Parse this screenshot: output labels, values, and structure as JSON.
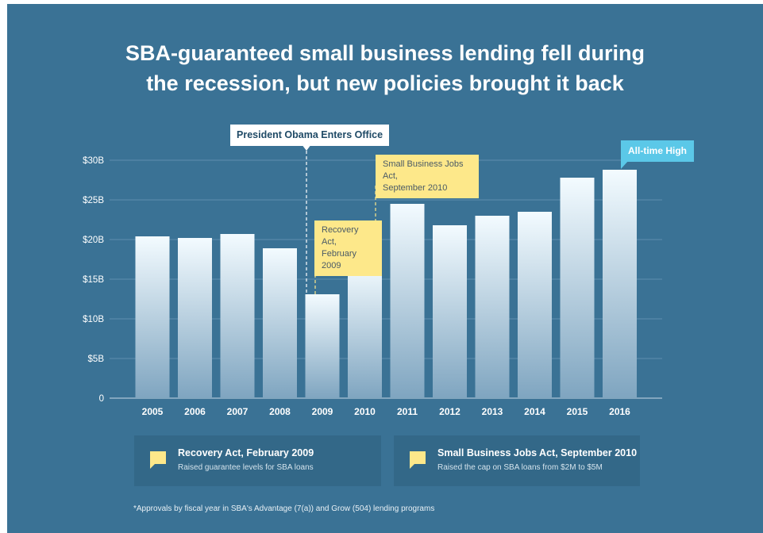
{
  "title_line1": "SBA-guaranteed small business lending fell during",
  "title_line2": "the recession, but new policies brought it back",
  "chart_data": {
    "type": "bar",
    "categories": [
      "2005",
      "2006",
      "2007",
      "2008",
      "2009",
      "2010",
      "2011",
      "2012",
      "2013",
      "2014",
      "2015",
      "2016"
    ],
    "values": [
      20.4,
      20.2,
      20.7,
      18.9,
      13.1,
      16.8,
      24.5,
      21.8,
      23.0,
      23.5,
      27.8,
      28.8
    ],
    "y_ticks": [
      {
        "value": 0,
        "label": "0"
      },
      {
        "value": 5,
        "label": "$5B"
      },
      {
        "value": 10,
        "label": "$10B"
      },
      {
        "value": 15,
        "label": "$15B"
      },
      {
        "value": 20,
        "label": "$20B"
      },
      {
        "value": 25,
        "label": "$25B"
      },
      {
        "value": 30,
        "label": "$30B"
      }
    ],
    "ylim": [
      0,
      30
    ],
    "grid": true,
    "annotations": [
      {
        "id": "obama",
        "year": "2009",
        "text": "President Obama Enters Office"
      },
      {
        "id": "recovery",
        "year": "2009",
        "line1": "Recovery Act,",
        "line2": "February 2009"
      },
      {
        "id": "jobs",
        "year": "2010",
        "line1": "Small Business Jobs Act,",
        "line2": "September 2010"
      },
      {
        "id": "high",
        "year": "2016",
        "text": "All-time High"
      }
    ]
  },
  "legend": [
    {
      "title": "Recovery Act, February 2009",
      "desc": "Raised guarantee levels for SBA loans"
    },
    {
      "title": "Small Business Jobs Act, September 2010",
      "desc": "Raised the cap on SBA loans from $2M to $5M"
    }
  ],
  "footnote": "*Approvals by fiscal year in SBA's Advantage (7(a)) and Grow (504) lending programs",
  "colors": {
    "background": "#3a7295",
    "bar_top": "#f3fbff",
    "bar_bottom": "#7fa5c0",
    "callout_yellow": "#fde88a",
    "callout_blue": "#5bc8e8",
    "legend_box": "#336888"
  }
}
